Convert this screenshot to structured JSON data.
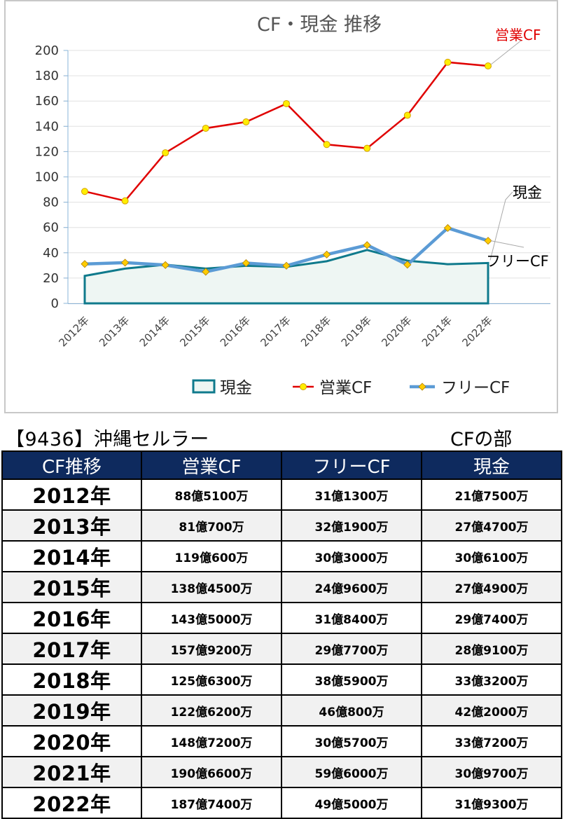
{
  "chart_data": {
    "type": "line",
    "title": "CF・現金 推移",
    "categories": [
      "2012年",
      "2013年",
      "2014年",
      "2015年",
      "2016年",
      "2017年",
      "2018年",
      "2019年",
      "2020年",
      "2021年",
      "2022年"
    ],
    "ylim": [
      0,
      200
    ],
    "yticks": [
      0,
      20,
      40,
      60,
      80,
      100,
      120,
      140,
      160,
      180,
      200
    ],
    "grid": true,
    "legend_placement": "bottom",
    "series": [
      {
        "name": "現金",
        "kind": "area",
        "color": "#0f7a8c",
        "fill": "#eef6f3",
        "values": [
          21.75,
          27.47,
          30.61,
          27.49,
          29.74,
          28.91,
          33.32,
          42.2,
          33.72,
          30.97,
          31.93
        ]
      },
      {
        "name": "営業CF",
        "kind": "line",
        "color": "#e00000",
        "marker_color": "#ffee00",
        "values": [
          88.51,
          81.07,
          119.06,
          138.45,
          143.5,
          157.92,
          125.63,
          122.62,
          148.72,
          190.66,
          187.74
        ]
      },
      {
        "name": "フリーCF",
        "kind": "line",
        "color": "#5b9bd5",
        "marker_color": "#ffcc00",
        "values": [
          31.13,
          32.19,
          30.3,
          24.96,
          31.84,
          29.77,
          38.59,
          46.08,
          30.57,
          59.6,
          49.5
        ]
      }
    ],
    "annotations": [
      {
        "text": "営業CF",
        "series": "営業CF",
        "color": "#e00000"
      },
      {
        "text": "現金",
        "series": "現金",
        "color": "#000000"
      },
      {
        "text": "フリーCF",
        "series": "フリーCF",
        "color": "#000000"
      }
    ]
  },
  "company": {
    "title": "【9436】沖縄セルラー"
  },
  "section": {
    "title": "CFの部"
  },
  "table": {
    "headers": [
      "CF推移",
      "営業CF",
      "フリーCF",
      "現金"
    ],
    "rows": [
      [
        "2012年",
        "88億5100万",
        "31億1300万",
        "21億7500万"
      ],
      [
        "2013年",
        "81億700万",
        "32億1900万",
        "27億4700万"
      ],
      [
        "2014年",
        "119億600万",
        "30億3000万",
        "30億6100万"
      ],
      [
        "2015年",
        "138億4500万",
        "24億9600万",
        "27億4900万"
      ],
      [
        "2016年",
        "143億5000万",
        "31億8400万",
        "29億7400万"
      ],
      [
        "2017年",
        "157億9200万",
        "29億7700万",
        "28億9100万"
      ],
      [
        "2018年",
        "125億6300万",
        "38億5900万",
        "33億3200万"
      ],
      [
        "2019年",
        "122億6200万",
        "46億800万",
        "42億2000万"
      ],
      [
        "2020年",
        "148億7200万",
        "30億5700万",
        "33億7200万"
      ],
      [
        "2021年",
        "190億6600万",
        "59億6000万",
        "30億9700万"
      ],
      [
        "2022年",
        "187億7400万",
        "49億5000万",
        "31億9300万"
      ]
    ]
  }
}
